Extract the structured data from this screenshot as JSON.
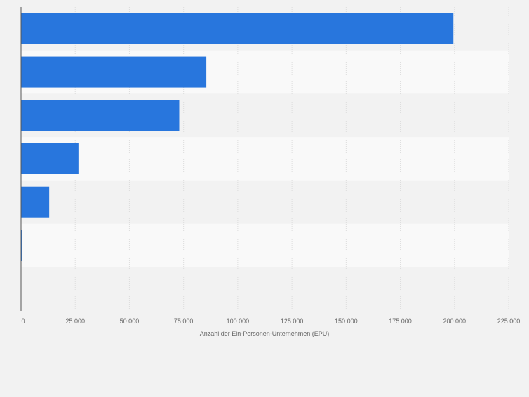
{
  "chart_data": {
    "type": "bar",
    "orientation": "horizontal",
    "title": "",
    "xlabel": "Anzahl der Ein-Personen-Unternehmen (EPU)",
    "ylabel": "",
    "categories": [
      "",
      "",
      "",
      "",
      "",
      "",
      ""
    ],
    "values": [
      199500,
      85500,
      73000,
      26500,
      13000,
      500,
      0
    ],
    "xlim": [
      0,
      225000
    ],
    "xticks": [
      0,
      25000,
      50000,
      75000,
      100000,
      125000,
      150000,
      175000,
      200000,
      225000
    ],
    "xtick_labels": [
      "0",
      "25.000",
      "50.000",
      "75.000",
      "100.000",
      "125.000",
      "150.000",
      "175.000",
      "200.000",
      "225.000"
    ],
    "grid": true,
    "legend": "none"
  },
  "colors": {
    "bar": "#2876dd",
    "band_light": "#f9f9f9",
    "band_dark": "#f2f2f2",
    "grid": "#dcdcdc",
    "axis": "#555555",
    "text": "#666666"
  }
}
